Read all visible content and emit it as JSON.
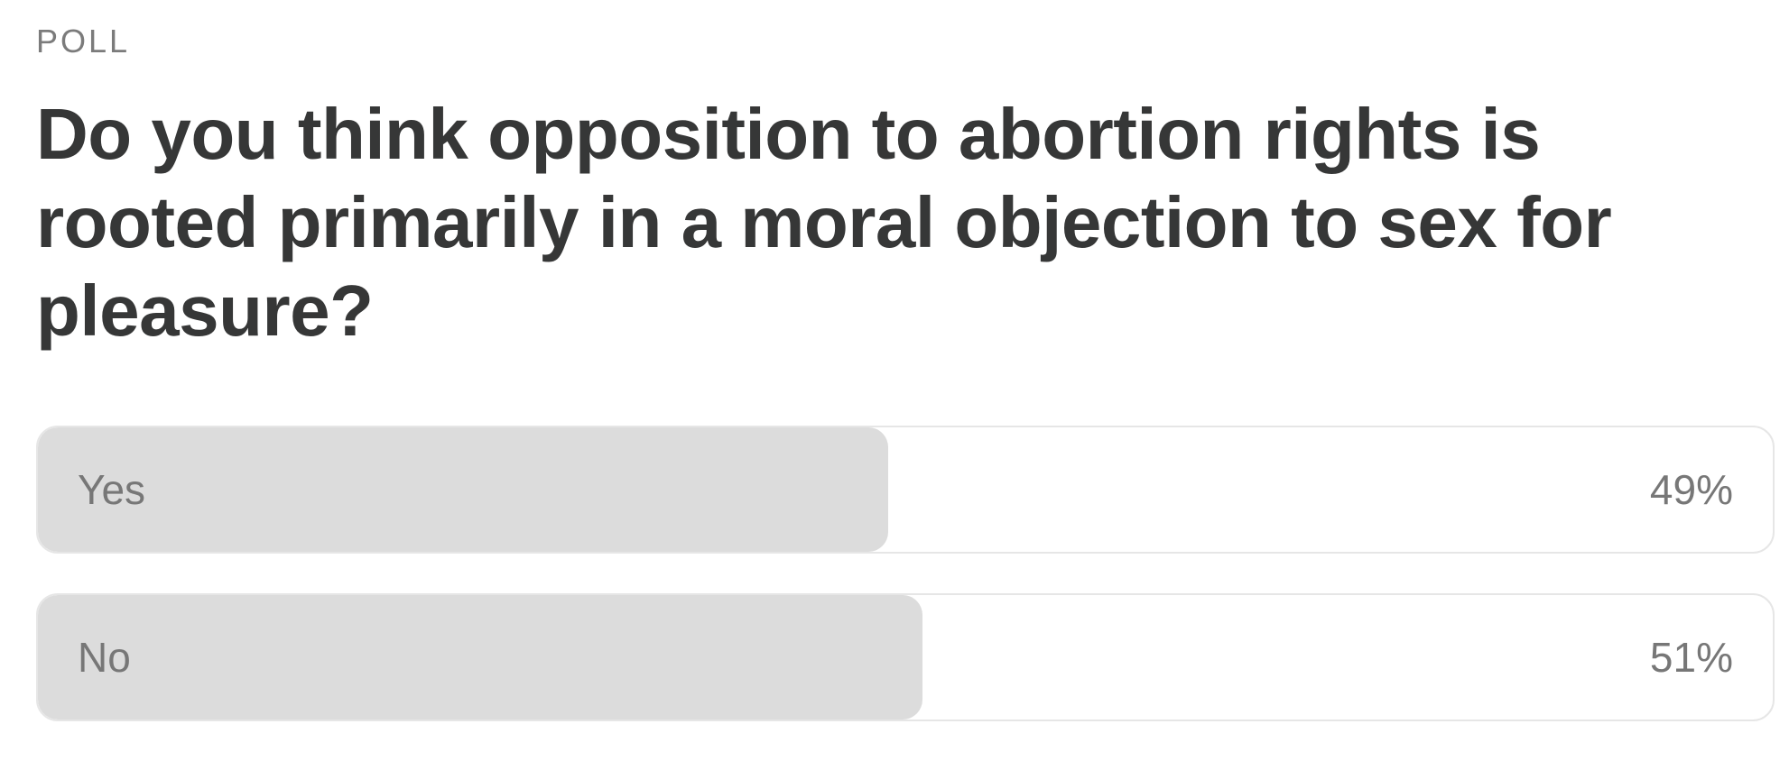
{
  "poll": {
    "label": "POLL",
    "question": "Do you think opposition to abortion rights is rooted primarily in a moral objection to sex for pleasure?",
    "options": [
      {
        "text": "Yes",
        "percent_label": "49%",
        "share": 0.49
      },
      {
        "text": "No",
        "percent_label": "51%",
        "share": 0.51
      }
    ]
  },
  "colors": {
    "background": "#ffffff",
    "text_dark": "#363737",
    "text_muted": "#777777",
    "bar_fill": "#dcdcdc",
    "bar_border": "#e6e6e6"
  }
}
